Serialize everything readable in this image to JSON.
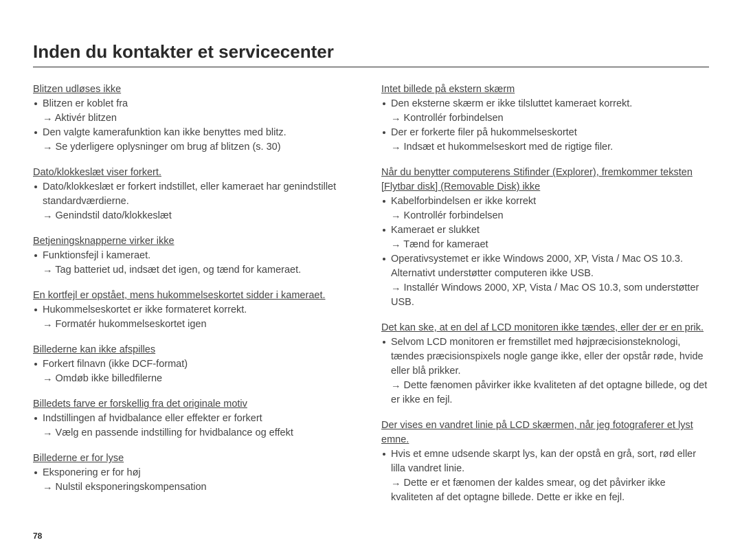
{
  "title": "Inden du kontakter et servicecenter",
  "page_number": "78",
  "left": [
    {
      "heading": "Blitzen udløses ikke",
      "items": [
        {
          "bullet": "Blitzen er koblet fra",
          "arrow": "Aktivér blitzen"
        },
        {
          "bullet": "Den valgte kamerafunktion kan ikke benyttes med blitz.",
          "arrow": "Se yderligere oplysninger om brug af blitzen (s. 30)"
        }
      ]
    },
    {
      "heading": "Dato/klokkeslæt viser forkert.",
      "items": [
        {
          "bullet": "Dato/klokkeslæt er forkert indstillet, eller kameraet har genindstillet standardværdierne.",
          "arrow": "Genindstil dato/klokkeslæt"
        }
      ]
    },
    {
      "heading": "Betjeningsknapperne virker ikke",
      "items": [
        {
          "bullet": "Funktionsfejl i kameraet.",
          "arrow": "Tag batteriet ud, indsæt det igen, og tænd for kameraet."
        }
      ]
    },
    {
      "heading": "En kortfejl er opstået, mens hukommelseskortet sidder i kameraet.",
      "items": [
        {
          "bullet": "Hukommelseskortet er ikke formateret korrekt.",
          "arrow": "Formatér hukommelseskortet igen"
        }
      ]
    },
    {
      "heading": "Billederne kan ikke afspilles",
      "items": [
        {
          "bullet": "Forkert filnavn (ikke DCF-format)",
          "arrow": "Omdøb ikke billedfilerne"
        }
      ]
    },
    {
      "heading": "Billedets farve er forskellig fra det originale motiv",
      "items": [
        {
          "bullet": "Indstillingen af hvidbalance eller effekter er forkert",
          "arrow": "Vælg en passende indstilling for hvidbalance og effekt"
        }
      ]
    },
    {
      "heading": "Billederne er for lyse",
      "items": [
        {
          "bullet": "Eksponering er for høj",
          "arrow": "Nulstil eksponeringskompensation"
        }
      ]
    }
  ],
  "right": [
    {
      "heading": "Intet billede på ekstern skærm",
      "items": [
        {
          "bullet": "Den eksterne skærm er ikke tilsluttet kameraet korrekt.",
          "arrow": "Kontrollér forbindelsen"
        },
        {
          "bullet": "Der er forkerte filer på hukommelseskortet",
          "arrow": "Indsæt et hukommelseskort med de rigtige filer."
        }
      ]
    },
    {
      "heading": "Når du benytter computerens Stifinder (Explorer), fremkommer teksten [Flytbar disk] (Removable Disk) ikke",
      "items": [
        {
          "bullet": "Kabelforbindelsen er ikke korrekt",
          "arrow": "Kontrollér forbindelsen"
        },
        {
          "bullet": "Kameraet er slukket",
          "arrow": "Tænd for kameraet"
        },
        {
          "bullet": "Operativsystemet er ikke Windows 2000, XP, Vista / Mac OS 10.3. Alternativt understøtter computeren ikke USB.",
          "arrow": "Installér Windows 2000, XP, Vista / Mac OS 10.3, som understøtter USB."
        }
      ]
    },
    {
      "heading": "Det kan ske, at en del af LCD monitoren ikke tændes, eller der er en prik.",
      "items": [
        {
          "bullet": "Selvom LCD monitoren er fremstillet med højpræcisionsteknologi, tændes præcisionspixels nogle gange ikke, eller der opstår røde, hvide eller blå prikker.",
          "arrow": "Dette fænomen påvirker ikke kvaliteten af det optagne billede, og det er ikke en fejl."
        }
      ]
    },
    {
      "heading": "Der vises en vandret linie på LCD skærmen, når jeg fotograferer et lyst emne.",
      "items": [
        {
          "bullet": "Hvis et emne udsende skarpt lys, kan der opstå en grå, sort, rød eller lilla vandret linie.",
          "arrow": "Dette er et fænomen der kaldes smear, og det påvirker ikke kvaliteten af det optagne billede. Dette er ikke en fejl."
        }
      ]
    }
  ]
}
